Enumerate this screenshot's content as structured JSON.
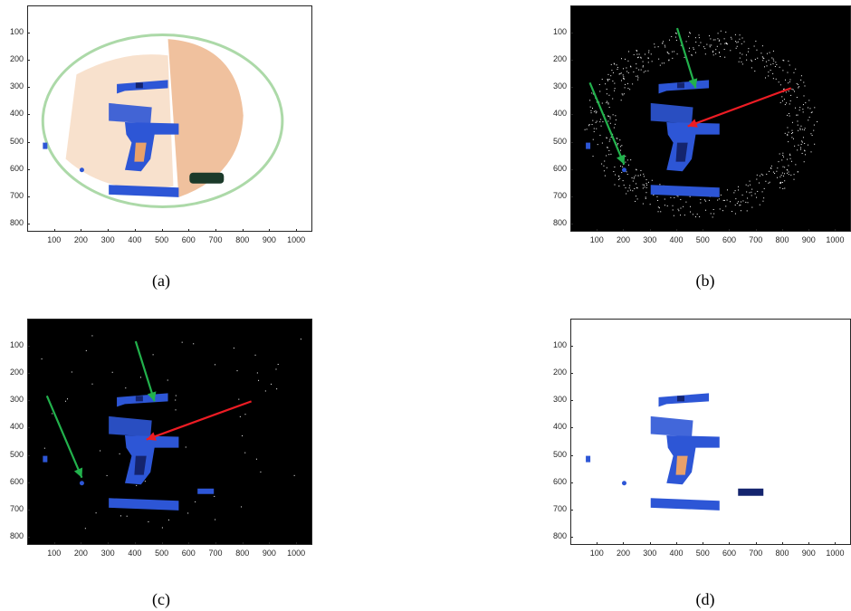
{
  "panels": [
    {
      "caption": "(a)",
      "background": "#ffffff",
      "scene": "xray-color"
    },
    {
      "caption": "(b)",
      "background": "#000000",
      "scene": "edges-noisy"
    },
    {
      "caption": "(c)",
      "background": "#000000",
      "scene": "filtered"
    },
    {
      "caption": "(d)",
      "background": "#ffffff",
      "scene": "segmented"
    }
  ],
  "axes": {
    "x_ticks": [
      "100",
      "200",
      "300",
      "400",
      "500",
      "600",
      "700",
      "800",
      "900",
      "1000"
    ],
    "y_ticks": [
      "100",
      "200",
      "300",
      "400",
      "500",
      "600",
      "700",
      "800"
    ]
  },
  "colors": {
    "object_blue": "#2d56d6",
    "dark_blue": "#14246e",
    "orange_bag": "#e8a06a",
    "green_outline": "#74c06e",
    "green_arrow": "#22b14c",
    "red_arrow": "#ed1c24",
    "noise_white": "#ffffff"
  }
}
